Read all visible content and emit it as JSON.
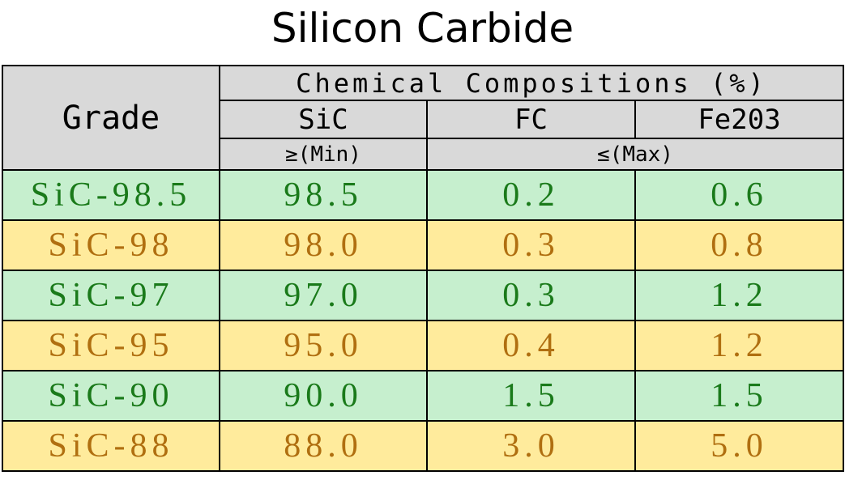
{
  "title": "Silicon Carbide",
  "table": {
    "header": {
      "grade": "Grade",
      "group": "Chemical Compositions (%)",
      "columns": [
        "SiC",
        "FC",
        "Fe203"
      ],
      "limits": [
        "≥(Min)",
        "≤(Max)"
      ]
    },
    "rows": [
      [
        "SiC-98.5",
        "98.5",
        "0.2",
        "0.6"
      ],
      [
        "SiC-98",
        "98.0",
        "0.3",
        "0.8"
      ],
      [
        "SiC-97",
        "97.0",
        "0.3",
        "1.2"
      ],
      [
        "SiC-95",
        "95.0",
        "0.4",
        "1.2"
      ],
      [
        "SiC-90",
        "90.0",
        "1.5",
        "1.5"
      ],
      [
        "SiC-88",
        "88.0",
        "3.0",
        "5.0"
      ]
    ]
  }
}
